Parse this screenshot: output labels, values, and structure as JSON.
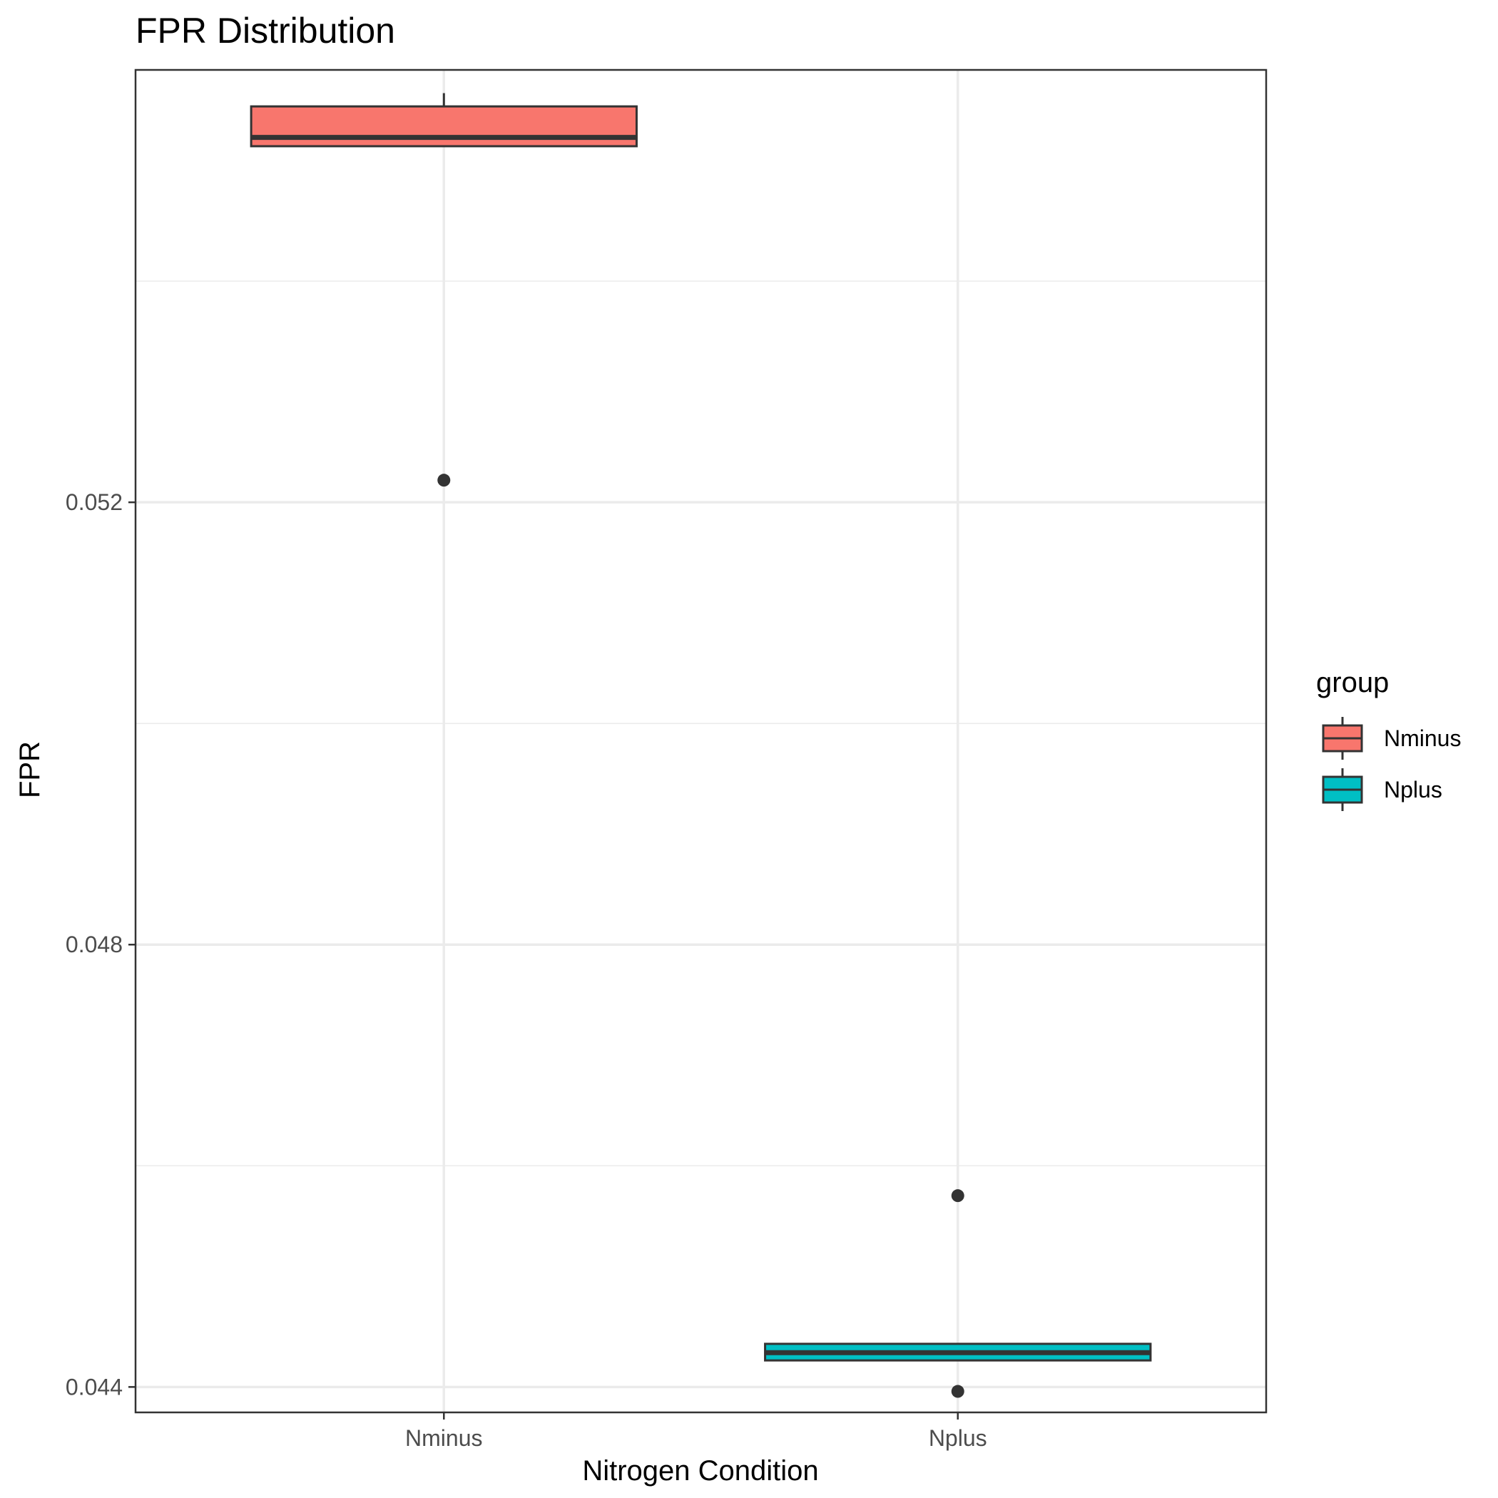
{
  "chart_data": {
    "type": "box",
    "title": "FPR Distribution",
    "xlabel": "Nitrogen Condition",
    "ylabel": "FPR",
    "categories": [
      "Nminus",
      "Nplus"
    ],
    "ylim": [
      0.04377,
      0.05591
    ],
    "yticks": [
      0.044,
      0.048,
      0.052
    ],
    "ytick_labels": [
      "0.044",
      "0.048",
      "0.052"
    ],
    "grid": true,
    "legend": {
      "title": "group",
      "position": "right",
      "entries": [
        "Nminus",
        "Nplus"
      ]
    },
    "series": [
      {
        "name": "Nminus",
        "color": "#F8766D",
        "whisker_low": 0.05522,
        "q1": 0.05522,
        "median": 0.0553,
        "q3": 0.05558,
        "whisker_high": 0.0557,
        "outliers": [
          0.0522
        ]
      },
      {
        "name": "Nplus",
        "color": "#00BFC4",
        "whisker_low": 0.04424,
        "q1": 0.04424,
        "median": 0.04431,
        "q3": 0.04439,
        "whisker_high": 0.04439,
        "outliers": [
          0.04573,
          0.04396
        ]
      }
    ]
  }
}
